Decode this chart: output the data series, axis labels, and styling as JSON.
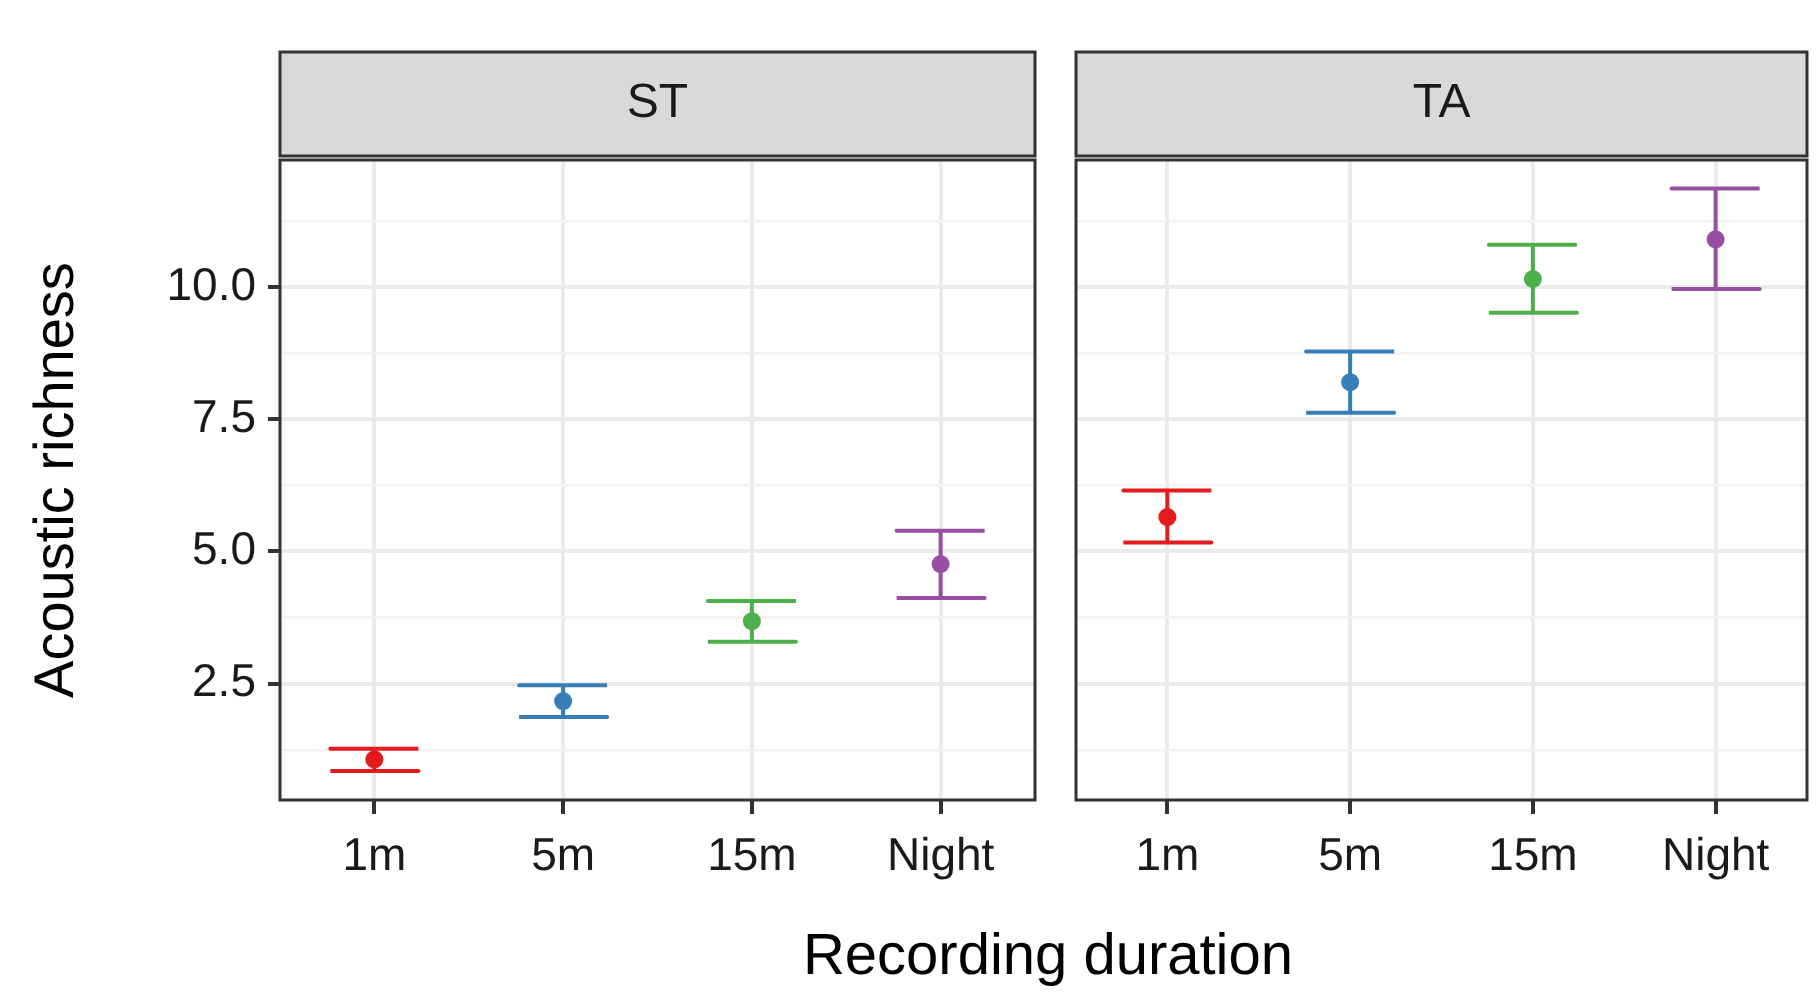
{
  "chart_data": [
    {
      "type": "scatter",
      "title": "ST",
      "ylabel": "Acoustic richness",
      "xlabel": "Recording duration",
      "categories": [
        "1m",
        "5m",
        "15m",
        "Night"
      ],
      "values": [
        1.07,
        2.17,
        3.68,
        4.76
      ],
      "errors": [
        [
          0.85,
          1.27
        ],
        [
          1.87,
          2.47
        ],
        [
          3.29,
          4.06
        ],
        [
          4.12,
          5.39
        ]
      ],
      "colors": [
        "#e41a1c",
        "#377eb8",
        "#4daf4a",
        "#984ea3"
      ],
      "ylim": [
        0.3,
        12.4
      ],
      "yticks": [
        {
          "value": 1.25,
          "label": null
        },
        2.5,
        {
          "value": 3.75,
          "label": null
        },
        {
          "value": 5,
          "label": "5.0"
        },
        {
          "value": 6.25,
          "label": null
        },
        7.5,
        {
          "value": 8.75,
          "label": null
        },
        {
          "value": 10,
          "label": "10.0"
        },
        {
          "value": 11.25,
          "label": null
        }
      ],
      "grid": true,
      "marker": "circle"
    },
    {
      "type": "scatter",
      "title": "TA",
      "categories": [
        "1m",
        "5m",
        "15m",
        "Night"
      ],
      "values": [
        5.65,
        8.2,
        10.15,
        10.9
      ],
      "errors": [
        [
          5.17,
          6.15
        ],
        [
          7.62,
          8.78
        ],
        [
          9.51,
          10.8
        ],
        [
          9.96,
          11.86
        ]
      ],
      "colors": [
        "#e41a1c",
        "#377eb8",
        "#4daf4a",
        "#984ea3"
      ],
      "ylim": [
        0.3,
        12.4
      ],
      "yticks": [
        {
          "value": 1.25,
          "label": null
        },
        2.5,
        {
          "value": 3.75,
          "label": null
        },
        5,
        {
          "value": 6.25,
          "label": null
        },
        7.5,
        {
          "value": 8.75,
          "label": null
        },
        10,
        {
          "value": 11.25,
          "label": null
        }
      ],
      "grid": true,
      "marker": "circle",
      "tick_labels": "x"
    }
  ]
}
